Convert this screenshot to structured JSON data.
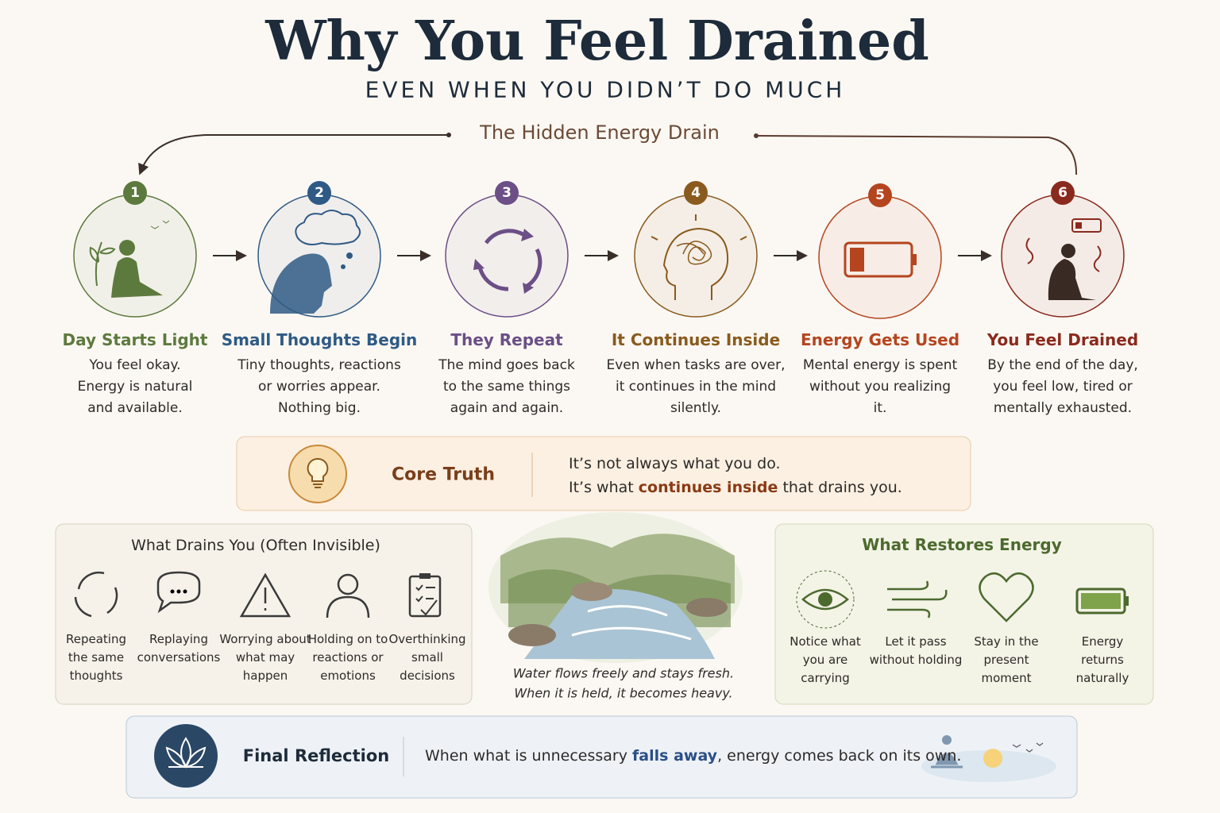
{
  "header": {
    "title": "Why You Feel Drained",
    "subtitle": "EVEN WHEN YOU DIDN’T DO MUCH"
  },
  "cycle": {
    "label": "The Hidden Energy Drain"
  },
  "steps": [
    {
      "number": 1,
      "title": "Day Starts Light",
      "color": "#5d7a3e",
      "lines": [
        "You feel okay.",
        "Energy is natural",
        "and available."
      ]
    },
    {
      "number": 2,
      "title": "Small Thoughts Begin",
      "color": "#2f5a85",
      "lines": [
        "Tiny thoughts, reactions",
        "or worries appear.",
        "Nothing big."
      ]
    },
    {
      "number": 3,
      "title": "They Repeat",
      "color": "#6b4f86",
      "lines": [
        "The mind goes back",
        "to the same things",
        "again and again."
      ]
    },
    {
      "number": 4,
      "title": "It Continues Inside",
      "color": "#8a5a1e",
      "lines": [
        "Even when tasks are over,",
        "it continues in the mind",
        "silently."
      ]
    },
    {
      "number": 5,
      "title": "Energy Gets Used",
      "color": "#b5451f",
      "lines": [
        "Mental energy is spent",
        "without you realizing",
        "it."
      ]
    },
    {
      "number": 6,
      "title": "You Feel Drained",
      "color": "#8a2a1e",
      "lines": [
        "By the end of the day,",
        "you feel low, tired or",
        "mentally exhausted."
      ]
    }
  ],
  "core": {
    "label": "Core Truth",
    "line1": "It’s not always what you do.",
    "line2": [
      {
        "text": "It’s what "
      },
      {
        "text": "continues inside",
        "highlight": true
      },
      {
        "text": " that drains you."
      }
    ]
  },
  "drains": {
    "title": "What Drains You (Often Invisible)",
    "items": [
      [
        "Repeating",
        "the same",
        "thoughts"
      ],
      [
        "Replaying",
        "conversations"
      ],
      [
        "Worrying about",
        "what may",
        "happen"
      ],
      [
        "Holding on to",
        "reactions or",
        "emotions"
      ],
      [
        "Overthinking",
        "small",
        "decisions"
      ]
    ]
  },
  "image": {
    "caption": [
      "Water flows freely and stays fresh.",
      "When it is held, it becomes heavy."
    ]
  },
  "restores": {
    "title": "What Restores Energy",
    "items": [
      [
        "Notice what",
        "you are",
        "carrying"
      ],
      [
        "Let it pass",
        "without holding"
      ],
      [
        "Stay in the",
        "present",
        "moment"
      ],
      [
        "Energy",
        "returns",
        "naturally"
      ]
    ]
  },
  "final": {
    "label": "Final Reflection",
    "text": [
      {
        "text": "When what is unnecessary "
      },
      {
        "text": "falls away",
        "highlight": true
      },
      {
        "text": ", energy comes back on its own."
      }
    ]
  }
}
